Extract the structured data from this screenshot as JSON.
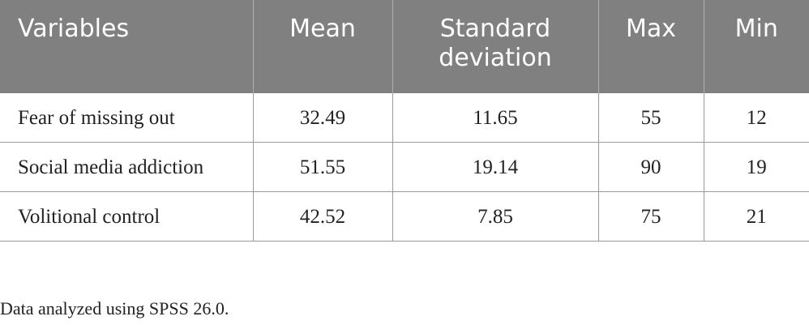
{
  "table": {
    "header": [
      "Variables",
      "Mean",
      "Standard deviation",
      "Max",
      "Min"
    ],
    "rows": [
      [
        "Fear of missing out",
        "32.49",
        "11.65",
        "55",
        "12"
      ],
      [
        "Social media addiction",
        "51.55",
        "19.14",
        "90",
        "19"
      ],
      [
        "Volitional control",
        "42.52",
        "7.85",
        "75",
        "21"
      ]
    ]
  },
  "footnote": "Data analyzed using SPSS 26.0."
}
